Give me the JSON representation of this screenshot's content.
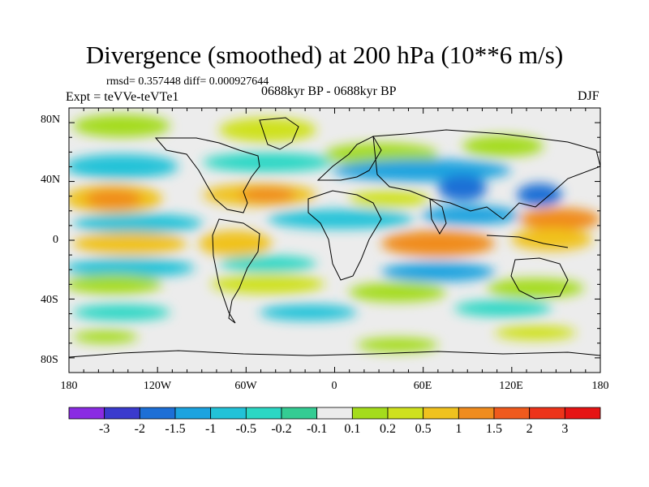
{
  "header": {
    "title": "Divergence (smoothed) at 200 hPa (10**6 m/s)",
    "stats": "rmsd= 0.357448 diff= 0.000927644",
    "experiment": "Expt = teVVe-teVTe1",
    "period": "0688kyr BP - 0688kyr BP",
    "season": "DJF"
  },
  "axes": {
    "lat_labels": [
      "80N",
      "40N",
      "0",
      "40S",
      "80S"
    ],
    "lon_labels": [
      "180",
      "120W",
      "60W",
      "0",
      "60E",
      "120E",
      "180"
    ]
  },
  "colorbar": {
    "labels": [
      "-3",
      "-2",
      "-1.5",
      "-1",
      "-0.5",
      "-0.2",
      "-0.1",
      "0.1",
      "0.2",
      "0.5",
      "1",
      "1.5",
      "2",
      "3"
    ],
    "colors": [
      "#8a2be2",
      "#3a3acd",
      "#1d6fd6",
      "#1ca3df",
      "#22c2d8",
      "#2bd7c4",
      "#34cc93",
      "#ececec",
      "#a4dc1c",
      "#cfe11e",
      "#f0c21e",
      "#f08c1e",
      "#ef5a1d",
      "#ed341a",
      "#e61414"
    ]
  },
  "map": {
    "projection": "cylindrical equidistant",
    "lon_range": [
      -180,
      180
    ],
    "lat_range": [
      -90,
      90
    ],
    "background_color": "#ececec",
    "coastline_color": "#000000"
  }
}
